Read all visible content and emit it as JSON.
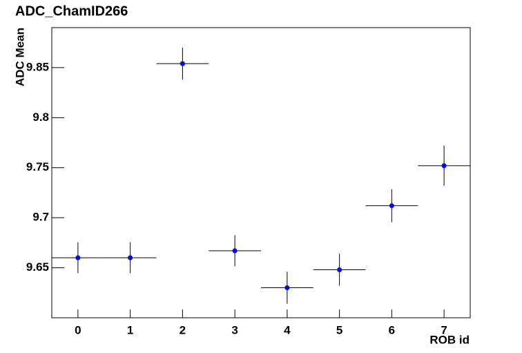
{
  "chart_data": {
    "type": "scatter",
    "title": "ADC_ChamID266",
    "x_label": "ROB id",
    "y_label": "ADC Mean",
    "x": [
      0,
      1,
      2,
      3,
      4,
      5,
      6,
      7
    ],
    "series": [
      {
        "color": "#0000ff",
        "error_color": "#000000",
        "values": [
          9.66,
          9.66,
          9.854,
          9.667,
          9.63,
          9.648,
          9.712,
          9.752
        ],
        "yerr": [
          0.0155,
          0.0155,
          0.016,
          0.0155,
          0.016,
          0.016,
          0.0165,
          0.02
        ],
        "xerr": [
          0.5,
          0.5,
          0.5,
          0.5,
          0.5,
          0.5,
          0.5,
          0.5
        ]
      }
    ],
    "xlim": [
      -0.5,
      7.5
    ],
    "ylim": [
      9.6,
      9.89
    ],
    "xticks": [
      0,
      1,
      2,
      3,
      4,
      5,
      6,
      7
    ],
    "yticks": [
      9.65,
      9.7,
      9.75,
      9.8,
      9.85
    ]
  }
}
